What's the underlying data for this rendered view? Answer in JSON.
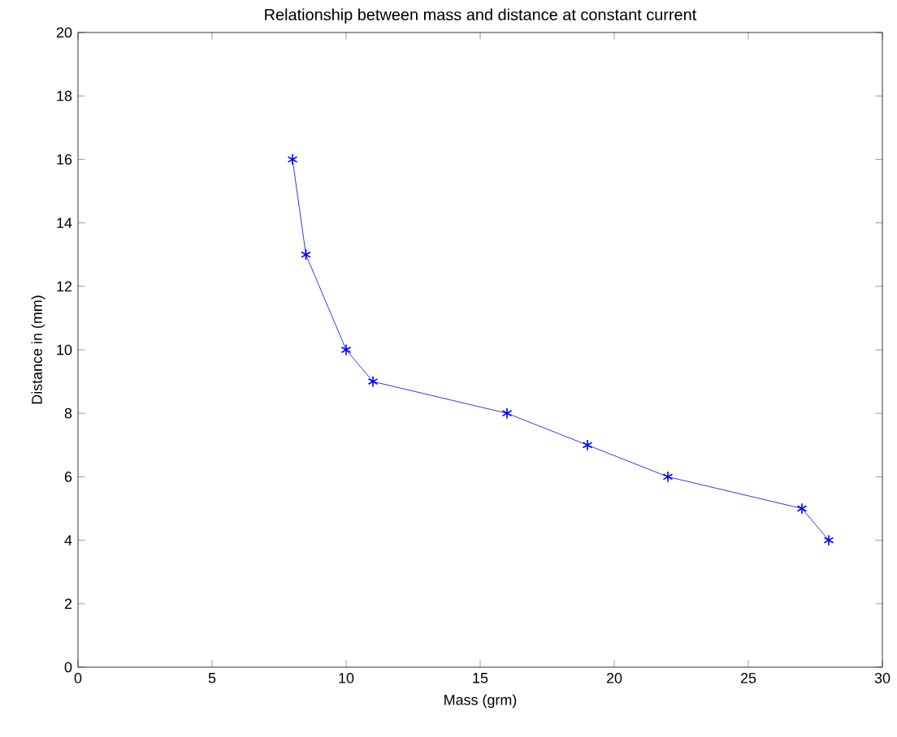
{
  "chart_data": {
    "type": "line",
    "title": "Relationship between mass and distance at constant current",
    "xlabel": "Mass (grm)",
    "ylabel": "Distance in (mm)",
    "x": [
      8,
      8.5,
      10,
      11,
      16,
      19,
      22,
      27,
      28
    ],
    "series": [
      {
        "color": "#0000ff",
        "values": [
          16,
          13,
          10,
          9,
          8,
          7,
          6,
          5,
          4
        ]
      }
    ],
    "xlim": [
      0,
      30
    ],
    "ylim": [
      0,
      20
    ],
    "xticks": [
      0,
      5,
      10,
      15,
      20,
      25,
      30
    ],
    "yticks": [
      0,
      2,
      4,
      6,
      8,
      10,
      12,
      14,
      16,
      18,
      20
    ],
    "marker": "cross",
    "line_style": "solid",
    "grid": false
  }
}
